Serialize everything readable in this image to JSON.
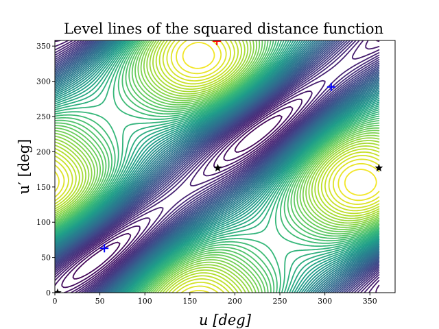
{
  "chart_data": {
    "type": "contour",
    "title": "Level lines of the squared distance function",
    "xlabel": "u [deg]",
    "ylabel": "u′ [deg]",
    "xlim": [
      0,
      378
    ],
    "ylim": [
      0,
      358
    ],
    "domain": [
      0,
      360
    ],
    "xticks": [
      "0",
      "50",
      "100",
      "150",
      "200",
      "250",
      "300",
      "350"
    ],
    "yticks": [
      "0",
      "50",
      "100",
      "150",
      "200",
      "250",
      "300",
      "350"
    ],
    "colormap": [
      "#440154",
      "#482878",
      "#3e4989",
      "#31688e",
      "#26828e",
      "#1f9e89",
      "#35b779",
      "#6ece58",
      "#b5de2b",
      "#fde725"
    ],
    "levels": 60,
    "markers": [
      {
        "kind": "maximum",
        "symbol": "+",
        "color": "#ff0000",
        "u": 180,
        "v": 357
      },
      {
        "kind": "minimum",
        "symbol": "+",
        "color": "#0000ff",
        "u": 307,
        "v": 292
      },
      {
        "kind": "minimum",
        "symbol": "+",
        "color": "#0000ff",
        "u": 55,
        "v": 63
      },
      {
        "kind": "saddle",
        "symbol": "star",
        "color": "#000000",
        "u": 181,
        "v": 177
      },
      {
        "kind": "saddle",
        "symbol": "star",
        "color": "#000000",
        "u": 360,
        "v": 177
      },
      {
        "kind": "saddle",
        "symbol": "star",
        "color": "#000000",
        "u": 3,
        "v": 0
      }
    ]
  }
}
